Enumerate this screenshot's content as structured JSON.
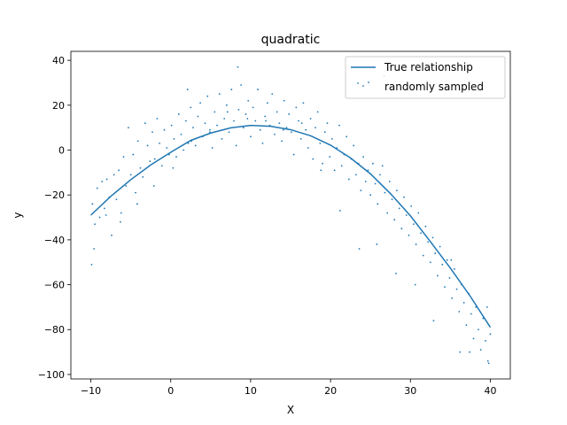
{
  "chart_data": {
    "type": "scatter",
    "title": "quadratic",
    "xlabel": "X",
    "ylabel": "y",
    "xlim": [
      -12.5,
      42.5
    ],
    "ylim": [
      -102,
      44
    ],
    "xticks": [
      -10,
      0,
      10,
      20,
      30,
      40
    ],
    "yticks": [
      -100,
      -80,
      -60,
      -40,
      -20,
      0,
      20,
      40
    ],
    "grid": false,
    "legend_position": "top-right",
    "colors": {
      "series": "#1f77b4",
      "axes": "#000000",
      "legend_border": "#cccccc"
    },
    "curve": {
      "name": "True relationship",
      "x": [
        -10,
        -7.5,
        -5,
        -2.5,
        0,
        2.5,
        5,
        7.5,
        10,
        12.5,
        15,
        17.5,
        20,
        22.5,
        25,
        27.5,
        30,
        32.5,
        35,
        37.5,
        40
      ],
      "y": [
        -29,
        -20.6,
        -13.2,
        -6.6,
        -1,
        4.3,
        7.6,
        9.9,
        11,
        10.6,
        9.1,
        6.4,
        2.2,
        -3.5,
        -10.6,
        -19.4,
        -29.3,
        -40.8,
        -52.6,
        -65.2,
        -79
      ]
    },
    "scatter_series": {
      "name": "randomly sampled",
      "x": [
        -9.8,
        -9.5,
        -9.2,
        -8.9,
        -8.6,
        -8.3,
        -8,
        -7.7,
        -7.4,
        -7.1,
        -6.8,
        -6.5,
        -6.2,
        -5.9,
        -5.6,
        -5.3,
        -5,
        -4.7,
        -4.4,
        -4.1,
        -3.8,
        -3.5,
        -3.2,
        -2.9,
        -2.6,
        -2.3,
        -2,
        -1.7,
        -1.4,
        -1.1,
        -0.8,
        -0.5,
        -0.2,
        0.1,
        0.4,
        0.7,
        1,
        1.3,
        1.6,
        1.9,
        2.2,
        2.5,
        2.8,
        3.1,
        3.4,
        3.7,
        4,
        4.3,
        4.6,
        4.9,
        5.2,
        5.5,
        5.8,
        6.1,
        6.4,
        6.7,
        7,
        7.3,
        7.6,
        7.9,
        8.2,
        8.5,
        8.8,
        9.1,
        9.4,
        9.7,
        10,
        10.3,
        10.6,
        10.9,
        11.2,
        11.5,
        11.8,
        12.1,
        12.4,
        12.7,
        13,
        13.3,
        13.6,
        13.9,
        14.2,
        14.5,
        14.8,
        15.1,
        15.4,
        15.7,
        16,
        16.3,
        16.6,
        16.9,
        17.2,
        17.5,
        17.8,
        18.1,
        18.4,
        18.7,
        19,
        19.3,
        19.6,
        19.9,
        20.2,
        20.5,
        20.8,
        21.1,
        21.4,
        21.7,
        22,
        22.3,
        22.6,
        22.9,
        23.2,
        23.5,
        23.8,
        24.1,
        24.4,
        24.7,
        25,
        25.3,
        25.6,
        25.9,
        26.2,
        26.5,
        26.8,
        27.1,
        27.4,
        27.7,
        28,
        28.3,
        28.6,
        28.9,
        29.2,
        29.5,
        29.8,
        30.1,
        30.4,
        30.7,
        31,
        31.3,
        31.6,
        31.9,
        32.2,
        32.5,
        32.8,
        33.1,
        33.4,
        33.7,
        34,
        34.3,
        34.6,
        34.9,
        35.2,
        35.5,
        35.8,
        36.1,
        36.4,
        36.7,
        37,
        37.3,
        37.6,
        37.9,
        38.2,
        38.5,
        38.8,
        39.1,
        39.4,
        39.7,
        40,
        -9.6,
        -8.1,
        -6.3,
        -4.2,
        -2.1,
        0.3,
        2.6,
        4.9,
        7.1,
        9.6,
        11.9,
        14.1,
        16.4,
        18.8,
        21.2,
        23.6,
        25.8,
        28.2,
        30.6,
        32.9,
        35.1,
        37.4,
        39.6,
        -9.9,
        2.1,
        8.4,
        26.7,
        36.2,
        39.8
      ],
      "y": [
        -24,
        -33,
        -17,
        -30,
        -14,
        -26,
        -13,
        -21,
        -38,
        -11,
        -22,
        -9,
        -28,
        -3,
        -16,
        10,
        -11,
        -2,
        -19,
        4,
        -8,
        -12,
        12,
        2,
        -5,
        8,
        -4,
        14,
        3,
        -7,
        9,
        1,
        -2,
        11,
        5,
        -3,
        16,
        7,
        0,
        13,
        3,
        19,
        10,
        2,
        15,
        21,
        6,
        12,
        24,
        9,
        1,
        17,
        11,
        25,
        5,
        14,
        20,
        8,
        27,
        13,
        2,
        18,
        29,
        10,
        16,
        22,
        6,
        19,
        13,
        27,
        9,
        3,
        15,
        21,
        11,
        25,
        7,
        17,
        12,
        4,
        22,
        10,
        16,
        8,
        -2,
        19,
        13,
        5,
        21,
        9,
        1,
        14,
        -4,
        10,
        17,
        3,
        -6,
        8,
        12,
        -3,
        5,
        -9,
        1,
        11,
        -7,
        -2,
        6,
        -13,
        -4,
        2,
        -11,
        -6,
        -18,
        -3,
        -14,
        -9,
        -20,
        -6,
        -15,
        -24,
        -11,
        -7,
        -19,
        -28,
        -14,
        -22,
        -31,
        -18,
        -26,
        -35,
        -21,
        -29,
        -38,
        -25,
        -33,
        -42,
        -28,
        -37,
        -47,
        -34,
        -41,
        -50,
        -39,
        -46,
        -56,
        -43,
        -51,
        -61,
        -49,
        -57,
        -66,
        -53,
        -62,
        -72,
        -60,
        -68,
        -78,
        -64,
        -73,
        -84,
        -70,
        -80,
        -89,
        -75,
        -85,
        -94,
        -82,
        -44,
        -29,
        -32,
        -24,
        -16,
        -8,
        4,
        8,
        17,
        14,
        13,
        9,
        12,
        -9,
        -27,
        -44,
        -42,
        -55,
        -60,
        -76,
        -49,
        -90,
        -70,
        -51,
        27,
        37,
        33,
        -90,
        -95
      ]
    },
    "legend": [
      {
        "label": "True relationship",
        "marker": "line"
      },
      {
        "label": "randomly sampled",
        "marker": "dot"
      }
    ]
  }
}
